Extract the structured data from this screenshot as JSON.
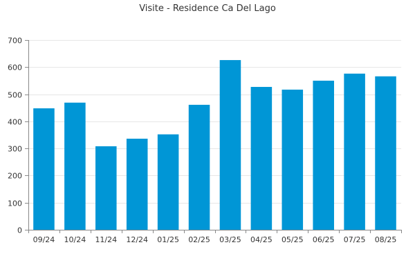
{
  "chart_data": {
    "type": "bar",
    "title": "Visite - Residence Ca Del Lago",
    "xlabel": "",
    "ylabel": "",
    "categories": [
      "09/24",
      "10/24",
      "11/24",
      "12/24",
      "01/25",
      "02/25",
      "03/25",
      "04/25",
      "05/25",
      "06/25",
      "07/25",
      "08/25"
    ],
    "values": [
      448,
      469,
      308,
      336,
      352,
      461,
      626,
      527,
      517,
      550,
      576,
      566
    ],
    "ylim": [
      0,
      700
    ],
    "yticks": [
      0,
      100,
      200,
      300,
      400,
      500,
      600,
      700
    ],
    "grid": true,
    "legend": "none",
    "bar_color": "#0096d6"
  }
}
